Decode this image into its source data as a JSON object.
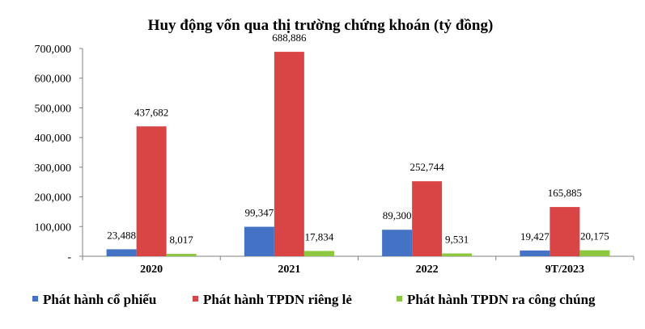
{
  "chart_data": {
    "type": "bar",
    "title": "Huy động vốn qua thị trường chứng khoán (tỷ đồng)",
    "xlabel": "",
    "ylabel": "",
    "categories": [
      "2020",
      "2021",
      "2022",
      "9T/2023"
    ],
    "ylim": [
      0,
      700000
    ],
    "yticks": [
      0,
      100000,
      200000,
      300000,
      400000,
      500000,
      600000,
      700000
    ],
    "ytick_labels": [
      "-",
      "100,000",
      "200,000",
      "300,000",
      "400,000",
      "500,000",
      "600,000",
      "700,000"
    ],
    "grid": false,
    "legend_position": "bottom",
    "series": [
      {
        "name": "Phát hành cổ phiếu",
        "color": "#4472C4",
        "values": [
          23488,
          99347,
          89300,
          19427
        ],
        "labels": [
          "23,488",
          "99,347",
          "89,300",
          "19,427"
        ]
      },
      {
        "name": "Phát hành TPDN riêng lẻ",
        "color": "#D94545",
        "values": [
          437682,
          688886,
          252744,
          165885
        ],
        "labels": [
          "437,682",
          "688,886",
          "252,744",
          "165,885"
        ]
      },
      {
        "name": "Phát hành TPDN ra công chúng",
        "color": "#8DC63F",
        "values": [
          8017,
          17834,
          9531,
          20175
        ],
        "labels": [
          "8,017",
          "17,834",
          "9,531",
          "20,175"
        ]
      }
    ]
  }
}
